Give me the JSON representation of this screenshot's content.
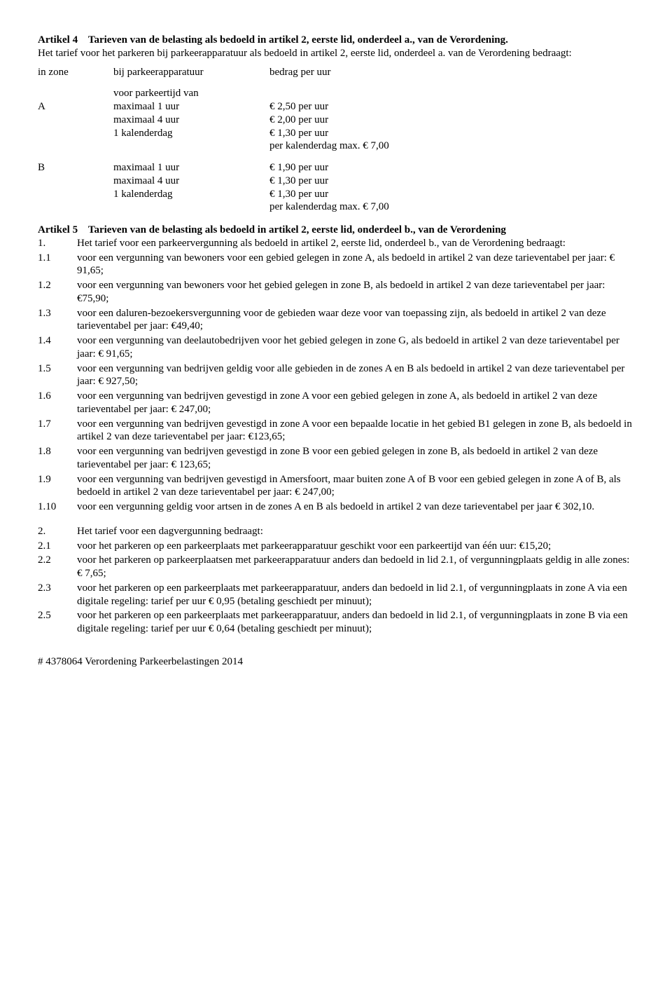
{
  "art4": {
    "heading_label": "Artikel 4",
    "heading_rest": "Tarieven van de belasting als bedoeld in artikel 2, eerste lid, onderdeel a., van de Verordening.",
    "intro": "Het tarief voor het parkeren bij parkeerapparatuur als bedoeld in artikel 2, eerste lid, onderdeel a. van de Verordening bedraagt:",
    "table": {
      "head_zone": "in zone",
      "head_item": "bij parkeerapparatuur",
      "head_rate": "bedrag per uur",
      "pretime": "voor parkeertijd van",
      "rows": [
        {
          "zone": "A",
          "item": "maximaal 1 uur",
          "rate": "€ 2,50 per uur"
        },
        {
          "zone": "",
          "item": "maximaal 4 uur",
          "rate": "€ 2,00 per uur"
        },
        {
          "zone": "",
          "item": "1 kalenderdag",
          "rate": "€ 1,30 per uur"
        },
        {
          "zone": "",
          "item": "",
          "rate": "per kalenderdag max. € 7,00"
        },
        {
          "spacer": true
        },
        {
          "zone": "B",
          "item": "maximaal 1 uur",
          "rate": "€ 1,90 per uur"
        },
        {
          "zone": "",
          "item": "maximaal 4 uur",
          "rate": "€ 1,30 per uur"
        },
        {
          "zone": "",
          "item": "1 kalenderdag",
          "rate": "€ 1,30 per uur"
        },
        {
          "zone": "",
          "item": "",
          "rate": "per kalenderdag max. € 7,00"
        }
      ]
    }
  },
  "art5": {
    "heading_label": "Artikel 5",
    "heading_rest": "Tarieven van de belasting als bedoeld in artikel 2, eerste lid, onderdeel b., van de Verordening",
    "list1": [
      {
        "n": "1.",
        "t": "Het tarief voor een parkeervergunning als bedoeld in artikel 2, eerste lid, onderdeel b., van de Verordening bedraagt:"
      },
      {
        "n": "1.1",
        "t": "voor een vergunning van bewoners voor een gebied gelegen in zone A, als bedoeld in artikel 2 van deze tarieventabel per jaar: € 91,65;"
      },
      {
        "n": "1.2",
        "t": "voor een vergunning van bewoners voor het gebied gelegen in zone B, als bedoeld in artikel 2 van deze tarieventabel per jaar: €75,90;"
      },
      {
        "n": "1.3",
        "t": "voor een daluren-bezoekersvergunning voor de gebieden waar deze voor van toepassing zijn, als bedoeld in artikel 2 van deze tarieventabel per jaar: €49,40;"
      },
      {
        "n": "1.4",
        "t": "voor een vergunning van deelautobedrijven voor het gebied gelegen in zone G, als bedoeld in artikel 2 van deze tarieventabel per jaar: € 91,65;"
      },
      {
        "n": "1.5",
        "t": "voor een vergunning van bedrijven geldig voor alle gebieden in de zones A en B als bedoeld in artikel 2 van deze tarieventabel per jaar: € 927,50;"
      },
      {
        "n": "1.6",
        "t": "voor een vergunning van bedrijven gevestigd in zone A voor een gebied gelegen in zone A, als bedoeld in artikel 2 van deze tarieventabel per jaar: € 247,00;"
      },
      {
        "n": "1.7",
        "t": "voor een vergunning van bedrijven gevestigd in zone A voor een bepaalde locatie in het gebied B1 gelegen in zone B, als bedoeld in artikel 2 van deze tarieventabel per jaar: €123,65;"
      },
      {
        "n": "1.8",
        "t": "voor een vergunning van bedrijven gevestigd in zone B voor een gebied gelegen in zone B, als bedoeld in artikel 2 van deze tarieventabel per jaar: € 123,65;"
      },
      {
        "n": "1.9",
        "t": "voor een vergunning van bedrijven gevestigd in Amersfoort, maar buiten zone A of B voor een gebied gelegen in zone A of B, als bedoeld in artikel 2 van deze tarieventabel per jaar: € 247,00;"
      },
      {
        "n": "1.10",
        "t": "voor een vergunning geldig voor artsen in de zones A en B als bedoeld in artikel 2 van deze tarieventabel per jaar € 302,10."
      }
    ],
    "list2": [
      {
        "n": "2.",
        "t": "Het tarief voor een dagvergunning bedraagt:"
      },
      {
        "n": "2.1",
        "t": "voor het parkeren op een parkeerplaats met parkeerapparatuur geschikt voor een parkeertijd van één uur: €15,20;"
      },
      {
        "n": "2.2",
        "t": "voor het parkeren op parkeerplaatsen met parkeerapparatuur anders dan bedoeld in lid 2.1, of vergunningplaats geldig in alle zones: € 7,65;"
      },
      {
        "n": "2.3",
        "t": "voor het parkeren op een parkeerplaats met parkeerapparatuur, anders dan bedoeld in lid 2.1, of vergunningplaats in zone A via een digitale regeling: tarief per uur € 0,95 (betaling geschiedt per minuut);"
      },
      {
        "n": "2.5",
        "t": "voor het parkeren op een parkeerplaats met parkeerapparatuur, anders dan bedoeld in lid 2.1, of vergunningplaats in zone B via een digitale regeling: tarief per uur € 0,64 (betaling geschiedt per minuut);"
      }
    ]
  },
  "footer": "# 4378064 Verordening Parkeerbelastingen 2014"
}
